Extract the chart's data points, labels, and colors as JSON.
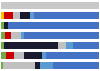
{
  "data": [
    [
      2.5,
      32.0,
      5.0,
      14.0,
      46.5
    ],
    [
      5.0,
      8.0,
      10.0,
      19.0,
      4.0,
      54.0
    ],
    [
      3.0,
      55.0,
      8.0,
      7.0,
      27.0
    ],
    [
      4.0,
      6.0,
      10.0,
      3.0,
      77.0
    ],
    [
      3.5,
      3.5,
      93.0
    ],
    [
      3.0,
      9.0,
      7.0,
      11.0,
      4.0,
      66.0
    ],
    [
      100.0
    ]
  ],
  "bar_colors": [
    [
      "#70ad47",
      "#c0c0c0",
      "#1a1a2e",
      "#5a9bd4",
      "#4472c4"
    ],
    [
      "#70ad47",
      "#cc0000",
      "#c0c0c0",
      "#1a1a2e",
      "#5a9bd4",
      "#4472c4"
    ],
    [
      "#70ad47",
      "#1a1a2e",
      "#c0c0c0",
      "#5a9bd4",
      "#4472c4"
    ],
    [
      "#70ad47",
      "#cc0000",
      "#c0c0c0",
      "#5a9bd4",
      "#4472c4"
    ],
    [
      "#70ad47",
      "#1a1a2e",
      "#4472c4"
    ],
    [
      "#ffc000",
      "#cc0000",
      "#c0c0c0",
      "#1a1a2e",
      "#5a9bd4",
      "#4472c4"
    ],
    [
      "#c8c8c8"
    ]
  ],
  "n_bars": 7,
  "background": "#ffffff",
  "figsize": [
    1.0,
    0.71
  ],
  "dpi": 100
}
